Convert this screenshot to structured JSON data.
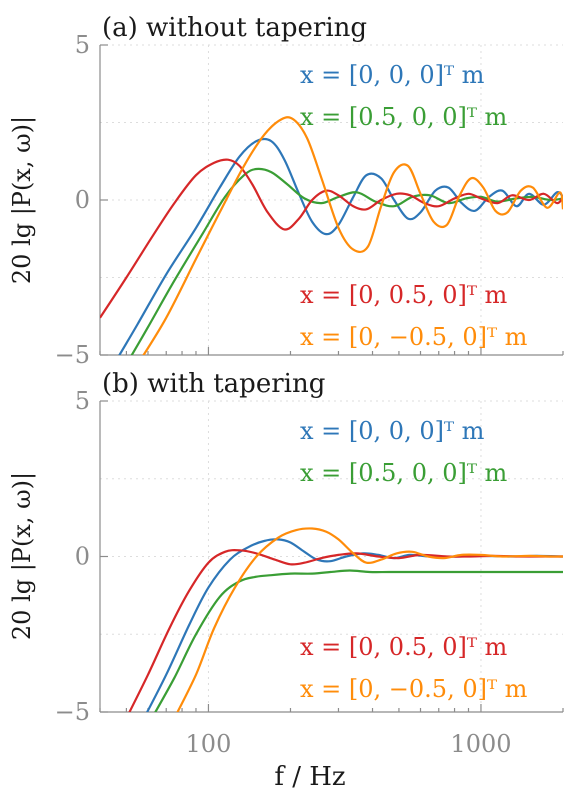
{
  "chart_data": [
    {
      "type": "line",
      "title": "(a) without tapering",
      "ylabel": "20 lg |P(x, ω)|",
      "xlabel": "",
      "xscale": "log",
      "xlim": [
        40,
        2000
      ],
      "ylim": [
        -5,
        5
      ],
      "yticks": [
        -5,
        0,
        5
      ],
      "ytick_labels": [
        "−5",
        "0",
        "5"
      ],
      "xticks": [
        100,
        1000
      ],
      "xtick_labels": [
        "",
        ""
      ],
      "grid": true,
      "legend_upper": [
        {
          "label": "x = [0, 0, 0]ᵀ m",
          "color": "#2e77b8"
        },
        {
          "label": "x = [0.5, 0, 0]ᵀ m",
          "color": "#3a9e35"
        }
      ],
      "legend_lower": [
        {
          "label": "x = [0, 0.5, 0]ᵀ m",
          "color": "#d62728"
        },
        {
          "label": "x = [0, −0.5, 0]ᵀ m",
          "color": "#ff8c0a"
        }
      ],
      "series": [
        {
          "name": "x = [0, 0, 0]ᵀ m",
          "color": "#2e77b8",
          "x": [
            45,
            55,
            70,
            90,
            110,
            130,
            150,
            170,
            190,
            215,
            240,
            270,
            300,
            340,
            380,
            430,
            480,
            540,
            600,
            680,
            760,
            850,
            950,
            1070,
            1200,
            1350,
            1500,
            1700,
            1900,
            2000
          ],
          "y": [
            -5.3,
            -4.0,
            -2.4,
            -0.9,
            0.4,
            1.4,
            1.9,
            1.9,
            1.3,
            0.2,
            -0.7,
            -1.1,
            -0.8,
            0.1,
            0.8,
            0.7,
            0.0,
            -0.6,
            -0.4,
            0.3,
            0.4,
            -0.1,
            -0.35,
            0.1,
            0.3,
            -0.2,
            0.2,
            -0.15,
            0.25,
            0.1
          ]
        },
        {
          "name": "x = [0.5, 0, 0]ᵀ m",
          "color": "#3a9e35",
          "x": [
            50,
            60,
            75,
            95,
            115,
            135,
            150,
            170,
            195,
            225,
            260,
            300,
            350,
            410,
            480,
            560,
            650,
            760,
            880,
            1000,
            1150,
            1350,
            1550,
            1800,
            2000
          ],
          "y": [
            -5.3,
            -4.1,
            -2.6,
            -1.1,
            0.1,
            0.8,
            1.0,
            0.9,
            0.5,
            0.05,
            -0.1,
            0.1,
            0.25,
            -0.05,
            -0.2,
            0.1,
            0.15,
            -0.1,
            0.05,
            0.1,
            -0.05,
            0.05,
            0.1,
            0.0,
            0.05
          ]
        },
        {
          "name": "x = [0, 0.5, 0]ᵀ m",
          "color": "#d62728",
          "x": [
            40,
            50,
            62,
            75,
            90,
            105,
            118,
            130,
            145,
            165,
            190,
            215,
            240,
            270,
            300,
            340,
            380,
            430,
            490,
            550,
            620,
            700,
            800,
            900,
            1000,
            1150,
            1300,
            1500,
            1700,
            1900,
            2000
          ],
          "y": [
            -3.8,
            -2.5,
            -1.2,
            -0.1,
            0.8,
            1.2,
            1.3,
            1.1,
            0.5,
            -0.4,
            -0.95,
            -0.6,
            0.0,
            0.3,
            0.15,
            -0.2,
            -0.3,
            0.0,
            0.2,
            0.15,
            -0.1,
            -0.2,
            0.05,
            0.2,
            0.05,
            -0.1,
            0.15,
            0.0,
            0.2,
            -0.1,
            0.1
          ]
        },
        {
          "name": "x = [0, −0.5, 0]ᵀ m",
          "color": "#ff8c0a",
          "x": [
            55,
            70,
            90,
            110,
            135,
            160,
            185,
            205,
            230,
            260,
            300,
            340,
            385,
            430,
            480,
            540,
            600,
            670,
            750,
            830,
            920,
            1020,
            1130,
            1250,
            1400,
            1550,
            1750,
            1950,
            2000
          ],
          "y": [
            -5.3,
            -3.8,
            -1.9,
            -0.4,
            1.1,
            2.1,
            2.6,
            2.6,
            2.0,
            0.7,
            -0.9,
            -1.6,
            -1.5,
            -0.2,
            0.9,
            1.1,
            0.2,
            -0.7,
            -0.8,
            0.1,
            0.7,
            0.4,
            -0.35,
            -0.4,
            0.3,
            0.4,
            -0.25,
            0.25,
            -0.3
          ]
        }
      ]
    },
    {
      "type": "line",
      "title": "(b) with tapering",
      "ylabel": "20 lg |P(x, ω)|",
      "xlabel": "f / Hz",
      "xscale": "log",
      "xlim": [
        40,
        2000
      ],
      "ylim": [
        -5,
        5
      ],
      "yticks": [
        -5,
        0,
        5
      ],
      "ytick_labels": [
        "−5",
        "0",
        "5"
      ],
      "xticks": [
        100,
        1000
      ],
      "xtick_labels": [
        "100",
        "1000"
      ],
      "grid": true,
      "legend_upper": [
        {
          "label": "x = [0, 0, 0]ᵀ m",
          "color": "#2e77b8"
        },
        {
          "label": "x = [0.5, 0, 0]ᵀ m",
          "color": "#3a9e35"
        }
      ],
      "legend_lower": [
        {
          "label": "x = [0, 0.5, 0]ᵀ m",
          "color": "#d62728"
        },
        {
          "label": "x = [0, −0.5, 0]ᵀ m",
          "color": "#ff8c0a"
        }
      ],
      "series": [
        {
          "name": "x = [0, 0, 0]ᵀ m",
          "color": "#2e77b8",
          "x": [
            58,
            70,
            85,
            100,
            120,
            140,
            160,
            180,
            200,
            225,
            250,
            280,
            320,
            370,
            420,
            480,
            550,
            650,
            800,
            1000,
            1300,
            1600,
            2000
          ],
          "y": [
            -5.2,
            -3.8,
            -2.2,
            -1.0,
            -0.1,
            0.3,
            0.5,
            0.55,
            0.45,
            0.15,
            -0.1,
            -0.15,
            0.0,
            0.1,
            0.05,
            -0.05,
            0.05,
            0.0,
            0.0,
            0.02,
            0.0,
            0.02,
            0.0
          ]
        },
        {
          "name": "x = [0.5, 0, 0]ᵀ m",
          "color": "#3a9e35",
          "x": [
            62,
            75,
            90,
            110,
            130,
            150,
            170,
            200,
            240,
            280,
            330,
            390,
            460,
            550,
            650,
            800,
            1000,
            1300,
            1600,
            2000
          ],
          "y": [
            -5.2,
            -3.9,
            -2.5,
            -1.3,
            -0.8,
            -0.65,
            -0.6,
            -0.55,
            -0.55,
            -0.5,
            -0.45,
            -0.5,
            -0.5,
            -0.5,
            -0.5,
            -0.5,
            -0.5,
            -0.5,
            -0.5,
            -0.5
          ]
        },
        {
          "name": "x = [0, 0.5, 0]ᵀ m",
          "color": "#d62728",
          "x": [
            50,
            60,
            72,
            85,
            100,
            115,
            130,
            150,
            175,
            200,
            225,
            260,
            300,
            350,
            420,
            500,
            600,
            750,
            900,
            1100,
            1400,
            1700,
            2000
          ],
          "y": [
            -5.2,
            -3.8,
            -2.3,
            -1.1,
            -0.2,
            0.15,
            0.2,
            0.1,
            -0.1,
            -0.25,
            -0.2,
            -0.05,
            0.05,
            0.1,
            0.0,
            -0.05,
            0.05,
            0.0,
            0.0,
            0.02,
            0.0,
            0.0,
            0.0
          ]
        },
        {
          "name": "x = [0, −0.5, 0]ᵀ m",
          "color": "#ff8c0a",
          "x": [
            75,
            90,
            105,
            125,
            150,
            180,
            210,
            240,
            270,
            300,
            340,
            380,
            430,
            490,
            560,
            640,
            730,
            850,
            1000,
            1200,
            1500,
            1800,
            2000
          ],
          "y": [
            -5.2,
            -3.8,
            -2.3,
            -1.0,
            0.0,
            0.6,
            0.85,
            0.9,
            0.8,
            0.55,
            0.1,
            -0.2,
            -0.1,
            0.1,
            0.15,
            0.0,
            -0.05,
            0.05,
            0.05,
            0.0,
            0.02,
            0.0,
            0.0
          ]
        }
      ]
    }
  ]
}
